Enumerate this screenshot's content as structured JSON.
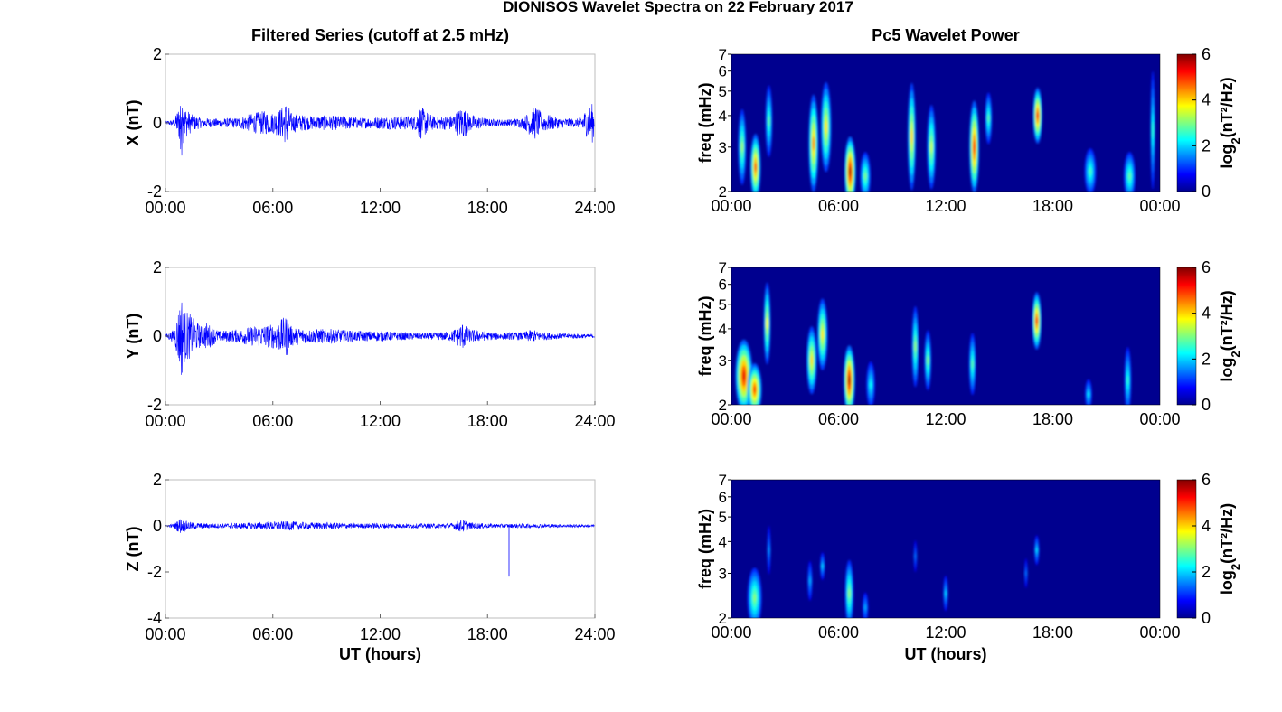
{
  "figure": {
    "title": "DIONISOS Wavelet Spectra on 22 February 2017"
  },
  "colors": {
    "trace": "#0000ff",
    "spectrum_background": "#00008f",
    "axis": "#000000"
  },
  "chart_data": [
    {
      "type": "line",
      "panel": "X",
      "title": "Filtered Series (cutoff at 2.5 mHz)",
      "ylabel": "X (nT)",
      "xlabel": "",
      "xlim": [
        0,
        24
      ],
      "ylim": [
        -2,
        2
      ],
      "xticks": [
        0,
        6,
        12,
        18,
        24
      ],
      "xticklabels": [
        "00:00",
        "06:00",
        "12:00",
        "18:00",
        "24:00"
      ],
      "yticks": [
        -2,
        0,
        2
      ],
      "yticklabels": [
        "-2",
        "0",
        "2"
      ],
      "series": [
        {
          "x": [
            0,
            0.5,
            0.8,
            0.85,
            0.9,
            1.0,
            1.2,
            1.5,
            2.0,
            3.0,
            4.0,
            5.0,
            5.5,
            6.0,
            6.5,
            6.8,
            7.0,
            8.0,
            9.0,
            10.0,
            11.0,
            12.0,
            13.0,
            14.0,
            14.2,
            15.0,
            16.0,
            16.6,
            17.0,
            18.0,
            19.0,
            20.0,
            20.5,
            20.7,
            21.0,
            22.0,
            23.0,
            23.9,
            24.0
          ],
          "amplitude": [
            0.05,
            0.1,
            0.6,
            1.6,
            -1.3,
            0.6,
            0.4,
            0.25,
            0.15,
            0.12,
            0.15,
            0.3,
            0.35,
            0.3,
            0.45,
            0.7,
            0.3,
            0.2,
            0.22,
            0.2,
            0.15,
            0.18,
            0.2,
            0.22,
            0.5,
            0.18,
            0.22,
            0.5,
            0.25,
            0.12,
            0.1,
            0.15,
            0.45,
            0.5,
            0.3,
            0.15,
            0.12,
            0.6,
            0.05
          ]
        }
      ]
    },
    {
      "type": "heatmap",
      "panel": "X",
      "title": "Pc5 Wavelet Power",
      "ylabel": "freq (mHz)",
      "xlabel": "",
      "xlim": [
        0,
        24
      ],
      "ylim": [
        2,
        7
      ],
      "yscale": "log",
      "xticks": [
        0,
        6,
        12,
        18,
        24
      ],
      "xticklabels": [
        "00:00",
        "06:00",
        "12:00",
        "18:00",
        "00:00"
      ],
      "yticks": [
        2,
        3,
        4,
        5,
        6,
        7
      ],
      "yticklabels": [
        "2",
        "3",
        "4",
        "5",
        "6",
        "7"
      ],
      "colorbar": {
        "label": "log2(nT²/Hz)",
        "range": [
          0,
          6
        ],
        "ticks": [
          0,
          2,
          4,
          6
        ]
      },
      "blobs": [
        {
          "t": 0.6,
          "f": 3.0,
          "dt": 0.14,
          "df": 1.0,
          "power": 2.8
        },
        {
          "t": 1.35,
          "f": 2.5,
          "dt": 0.18,
          "df": 0.8,
          "power": 4.6
        },
        {
          "t": 2.1,
          "f": 3.8,
          "dt": 0.12,
          "df": 1.2,
          "power": 2.3
        },
        {
          "t": 4.6,
          "f": 3.1,
          "dt": 0.17,
          "df": 1.3,
          "power": 4.2
        },
        {
          "t": 5.3,
          "f": 3.6,
          "dt": 0.18,
          "df": 1.4,
          "power": 3.6
        },
        {
          "t": 6.65,
          "f": 2.4,
          "dt": 0.2,
          "df": 1.0,
          "power": 5.6
        },
        {
          "t": 7.5,
          "f": 2.3,
          "dt": 0.18,
          "df": 0.5,
          "power": 2.6
        },
        {
          "t": 10.1,
          "f": 3.3,
          "dt": 0.14,
          "df": 1.5,
          "power": 3.7
        },
        {
          "t": 11.2,
          "f": 3.0,
          "dt": 0.15,
          "df": 1.1,
          "power": 3.1
        },
        {
          "t": 13.6,
          "f": 3.0,
          "dt": 0.17,
          "df": 1.2,
          "power": 5.0
        },
        {
          "t": 14.4,
          "f": 3.9,
          "dt": 0.12,
          "df": 0.9,
          "power": 2.3
        },
        {
          "t": 17.15,
          "f": 4.0,
          "dt": 0.16,
          "df": 1.0,
          "power": 5.0
        },
        {
          "t": 20.1,
          "f": 2.4,
          "dt": 0.2,
          "df": 0.5,
          "power": 2.2
        },
        {
          "t": 22.3,
          "f": 2.3,
          "dt": 0.2,
          "df": 0.5,
          "power": 2.4
        },
        {
          "t": 23.6,
          "f": 3.5,
          "dt": 0.08,
          "df": 1.8,
          "power": 2.0
        }
      ]
    },
    {
      "type": "line",
      "panel": "Y",
      "title": "",
      "ylabel": "Y (nT)",
      "xlabel": "",
      "xlim": [
        0,
        24
      ],
      "ylim": [
        -2,
        2
      ],
      "xticks": [
        0,
        6,
        12,
        18,
        24
      ],
      "xticklabels": [
        "00:00",
        "06:00",
        "12:00",
        "18:00",
        "24:00"
      ],
      "yticks": [
        -2,
        0,
        2
      ],
      "yticklabels": [
        "-2",
        "0",
        "2"
      ],
      "series": [
        {
          "x": [
            0,
            0.5,
            0.8,
            0.9,
            1.0,
            1.3,
            1.6,
            2.0,
            2.3,
            3.0,
            4.0,
            5.0,
            6.0,
            6.8,
            7.0,
            8.0,
            9.0,
            10.0,
            11.0,
            12.0,
            13.0,
            14.0,
            15.0,
            16.0,
            16.6,
            17.0,
            18.0,
            19.0,
            20.0,
            20.5,
            21.0,
            22.0,
            23.0,
            24.0
          ],
          "amplitude": [
            0.05,
            0.2,
            1.0,
            1.3,
            0.8,
            0.7,
            0.5,
            0.3,
            0.4,
            0.15,
            0.2,
            0.3,
            0.35,
            0.6,
            0.3,
            0.2,
            0.22,
            0.18,
            0.15,
            0.15,
            0.12,
            0.1,
            0.1,
            0.15,
            0.4,
            0.2,
            0.12,
            0.1,
            0.12,
            0.2,
            0.12,
            0.08,
            0.07,
            0.05
          ]
        }
      ]
    },
    {
      "type": "heatmap",
      "panel": "Y",
      "title": "",
      "ylabel": "freq (mHz)",
      "xlabel": "",
      "xlim": [
        0,
        24
      ],
      "ylim": [
        2,
        7
      ],
      "yscale": "log",
      "xticks": [
        0,
        6,
        12,
        18,
        24
      ],
      "xticklabels": [
        "00:00",
        "06:00",
        "12:00",
        "18:00",
        "00:00"
      ],
      "yticks": [
        2,
        3,
        4,
        5,
        6,
        7
      ],
      "yticklabels": [
        "2",
        "3",
        "4",
        "5",
        "6",
        "7"
      ],
      "colorbar": {
        "label": "log2(nT²/Hz)",
        "range": [
          0,
          6
        ],
        "ticks": [
          0,
          2,
          4,
          6
        ]
      },
      "blobs": [
        {
          "t": 0.7,
          "f": 2.6,
          "dt": 0.3,
          "df": 0.9,
          "power": 5.3
        },
        {
          "t": 1.3,
          "f": 2.3,
          "dt": 0.25,
          "df": 0.6,
          "power": 4.8
        },
        {
          "t": 2.0,
          "f": 4.2,
          "dt": 0.12,
          "df": 1.5,
          "power": 3.4
        },
        {
          "t": 4.5,
          "f": 3.0,
          "dt": 0.18,
          "df": 0.9,
          "power": 3.7
        },
        {
          "t": 5.1,
          "f": 3.8,
          "dt": 0.18,
          "df": 1.2,
          "power": 3.6
        },
        {
          "t": 6.6,
          "f": 2.5,
          "dt": 0.2,
          "df": 0.9,
          "power": 5.6
        },
        {
          "t": 7.8,
          "f": 2.4,
          "dt": 0.15,
          "df": 0.5,
          "power": 1.8
        },
        {
          "t": 10.3,
          "f": 3.4,
          "dt": 0.12,
          "df": 1.2,
          "power": 2.7
        },
        {
          "t": 11.0,
          "f": 3.0,
          "dt": 0.12,
          "df": 0.8,
          "power": 2.5
        },
        {
          "t": 13.5,
          "f": 2.9,
          "dt": 0.12,
          "df": 0.8,
          "power": 2.3
        },
        {
          "t": 17.1,
          "f": 4.3,
          "dt": 0.16,
          "df": 1.1,
          "power": 4.9
        },
        {
          "t": 20.0,
          "f": 2.2,
          "dt": 0.12,
          "df": 0.3,
          "power": 1.6
        },
        {
          "t": 22.2,
          "f": 2.5,
          "dt": 0.12,
          "df": 0.8,
          "power": 2.0
        }
      ]
    },
    {
      "type": "line",
      "panel": "Z",
      "title": "",
      "ylabel": "Z (nT)",
      "xlabel": "UT (hours)",
      "xlim": [
        0,
        24
      ],
      "ylim": [
        -4,
        2
      ],
      "xticks": [
        0,
        6,
        12,
        18,
        24
      ],
      "xticklabels": [
        "00:00",
        "06:00",
        "12:00",
        "18:00",
        "24:00"
      ],
      "yticks": [
        -4,
        -2,
        0,
        2
      ],
      "yticklabels": [
        "-4",
        "-2",
        "0",
        "2"
      ],
      "series": [
        {
          "x": [
            0,
            0.5,
            0.8,
            1.0,
            1.5,
            2.0,
            3.0,
            4.0,
            5.0,
            6.0,
            7.0,
            8.0,
            9.0,
            10.0,
            11.0,
            12.0,
            13.0,
            14.0,
            15.0,
            16.0,
            16.6,
            17.0,
            18.0,
            19.0,
            20.0,
            21.0,
            22.0,
            23.0,
            24.0
          ],
          "amplitude": [
            0.03,
            0.1,
            0.35,
            0.25,
            0.15,
            0.12,
            0.1,
            0.12,
            0.15,
            0.18,
            0.2,
            0.15,
            0.15,
            0.12,
            0.1,
            0.12,
            0.1,
            0.1,
            0.1,
            0.12,
            0.3,
            0.15,
            0.1,
            0.08,
            0.1,
            0.08,
            0.07,
            0.06,
            0.05
          ]
        }
      ],
      "spike": {
        "x": 19.2,
        "y": -2.2
      }
    },
    {
      "type": "heatmap",
      "panel": "Z",
      "title": "",
      "ylabel": "freq (mHz)",
      "xlabel": "UT (hours)",
      "xlim": [
        0,
        24
      ],
      "ylim": [
        2,
        7
      ],
      "yscale": "log",
      "xticks": [
        0,
        6,
        12,
        18,
        24
      ],
      "xticklabels": [
        "00:00",
        "06:00",
        "12:00",
        "18:00",
        "00:00"
      ],
      "yticks": [
        2,
        3,
        4,
        5,
        6,
        7
      ],
      "yticklabels": [
        "2",
        "3",
        "4",
        "5",
        "6",
        "7"
      ],
      "colorbar": {
        "label": "log2(nT²/Hz)",
        "range": [
          0,
          6
        ],
        "ticks": [
          0,
          2,
          4,
          6
        ]
      },
      "blobs": [
        {
          "t": 1.3,
          "f": 2.4,
          "dt": 0.25,
          "df": 0.7,
          "power": 2.7
        },
        {
          "t": 2.1,
          "f": 3.7,
          "dt": 0.06,
          "df": 0.8,
          "power": 1.0
        },
        {
          "t": 4.4,
          "f": 2.8,
          "dt": 0.08,
          "df": 0.5,
          "power": 1.2
        },
        {
          "t": 5.1,
          "f": 3.2,
          "dt": 0.08,
          "df": 0.4,
          "power": 1.4
        },
        {
          "t": 6.6,
          "f": 2.5,
          "dt": 0.15,
          "df": 0.8,
          "power": 2.7
        },
        {
          "t": 7.5,
          "f": 2.2,
          "dt": 0.1,
          "df": 0.3,
          "power": 1.2
        },
        {
          "t": 10.3,
          "f": 3.5,
          "dt": 0.05,
          "df": 0.5,
          "power": 0.8
        },
        {
          "t": 12.0,
          "f": 2.5,
          "dt": 0.08,
          "df": 0.4,
          "power": 1.4
        },
        {
          "t": 16.5,
          "f": 3.0,
          "dt": 0.05,
          "df": 0.4,
          "power": 0.8
        },
        {
          "t": 17.1,
          "f": 3.7,
          "dt": 0.08,
          "df": 0.5,
          "power": 1.5
        }
      ]
    }
  ]
}
